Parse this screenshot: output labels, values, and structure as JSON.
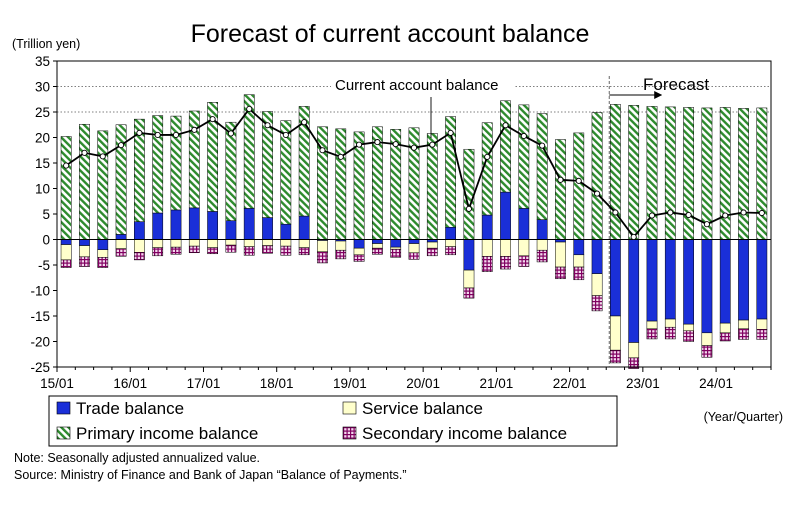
{
  "chart_data": {
    "type": "bar",
    "title": "Forecast of current account balance",
    "ylabel": "(Trillion yen)",
    "xlabel": "(Year/Quarter)",
    "ylim": [
      -25,
      35
    ],
    "yticks": [
      35,
      30,
      25,
      20,
      15,
      10,
      5,
      0,
      -5,
      -10,
      -15,
      -20,
      -25
    ],
    "xtick_labels": [
      "15/01",
      "16/01",
      "17/01",
      "18/01",
      "19/01",
      "20/01",
      "21/01",
      "22/01",
      "23/01",
      "24/01"
    ],
    "grid": "dotted horizontal at 30 and 25",
    "stacked": true,
    "forecast_label": "Forecast",
    "forecast_start_index": 30,
    "line_label": "Current account balance",
    "quarters": [
      "15/01",
      "15/02",
      "15/03",
      "15/04",
      "16/01",
      "16/02",
      "16/03",
      "16/04",
      "17/01",
      "17/02",
      "17/03",
      "17/04",
      "18/01",
      "18/02",
      "18/03",
      "18/04",
      "19/01",
      "19/02",
      "19/03",
      "19/04",
      "20/01",
      "20/02",
      "20/03",
      "20/04",
      "21/01",
      "21/02",
      "21/03",
      "21/04",
      "22/01",
      "22/02",
      "22/03",
      "22/04",
      "23/01",
      "23/02",
      "23/03",
      "23/04",
      "24/01",
      "24/02",
      "24/03"
    ],
    "series": [
      {
        "name": "Trade balance",
        "color": "#1a2fd8",
        "pattern": "solid",
        "values": [
          -1,
          -1.2,
          -2,
          1,
          3.5,
          5.2,
          5.8,
          6.2,
          5.5,
          3.7,
          6.1,
          4.3,
          3,
          4.6,
          -0.2,
          -0.3,
          -1.7,
          -0.8,
          -1.5,
          -0.8,
          -0.5,
          2.4,
          -6,
          4.8,
          9.3,
          6.1,
          3.9,
          -0.5,
          -3,
          -6.7,
          -15,
          -20.2,
          -16,
          -15.6,
          -16.6,
          -18.3,
          -16.4,
          -15.8,
          -15.6
        ]
      },
      {
        "name": "Service balance",
        "color": "#ffffcc",
        "pattern": "cream",
        "values": [
          -3,
          -2.2,
          -1.5,
          -1.8,
          -2.5,
          -1.6,
          -1.5,
          -1.3,
          -1.6,
          -1.1,
          -1.4,
          -1.2,
          -1.3,
          -1.6,
          -2.2,
          -1.8,
          -1.3,
          -0.9,
          -0.4,
          -1.8,
          -1.2,
          -1.4,
          -3.5,
          -3.3,
          -3.3,
          -3.2,
          -2.1,
          -4.9,
          -2.4,
          -4.3,
          -6.7,
          -3,
          -1.5,
          -1.6,
          -1.3,
          -2.5,
          -1.9,
          -1.7,
          -2
        ]
      },
      {
        "name": "Primary income balance",
        "color": "#2d8a2d",
        "pattern": "diagonal",
        "values": [
          20.2,
          22.6,
          21.3,
          21.5,
          20.1,
          19.1,
          18.4,
          19,
          21.4,
          19.3,
          22.3,
          20.8,
          20.3,
          21.5,
          22.1,
          21.7,
          21.1,
          22.1,
          21.6,
          21.9,
          20.8,
          21.7,
          17.7,
          18.1,
          17.9,
          20.3,
          20.8,
          19.6,
          20.9,
          24.9,
          26.5,
          26.3,
          26.1,
          26,
          25.9,
          25.8,
          25.9,
          25.7,
          25.8
        ]
      },
      {
        "name": "Secondary income balance",
        "color": "#800060",
        "pattern": "grid",
        "values": [
          -1.5,
          -1.9,
          -2,
          -1.5,
          -1.5,
          -1.6,
          -1.4,
          -1.3,
          -1.2,
          -1.4,
          -1.7,
          -1.5,
          -1.8,
          -1.4,
          -2.2,
          -1.7,
          -1.3,
          -1.2,
          -1.6,
          -1.3,
          -1.5,
          -1.6,
          -2,
          -3,
          -2.5,
          -2.1,
          -2.3,
          -2.3,
          -2.5,
          -3,
          -2.5,
          -2.1,
          -2,
          -2.3,
          -2.1,
          -2.3,
          -1.6,
          -2.1,
          -2
        ]
      }
    ],
    "line_series": {
      "name": "Current account balance",
      "values": [
        14.5,
        17,
        16.3,
        18.5,
        20.9,
        20.5,
        20.5,
        21.5,
        23.6,
        20.8,
        25.6,
        22.4,
        20.5,
        23,
        17.5,
        16.2,
        18.6,
        19.1,
        18.7,
        18,
        18.6,
        20.9,
        6,
        16.2,
        22.4,
        20.3,
        18.4,
        11.7,
        11.5,
        9,
        5.3,
        0.5,
        4.7,
        5.3,
        4.8,
        3,
        4.7,
        5.3,
        5.2
      ]
    }
  },
  "legend": {
    "items": [
      "Trade balance",
      "Service balance",
      "Primary income balance",
      "Secondary income balance"
    ]
  },
  "notes": {
    "note": "Note: Seasonally adjusted annualized value.",
    "source": "Source: Ministry of Finance and Bank of Japan “Balance of Payments.”"
  }
}
